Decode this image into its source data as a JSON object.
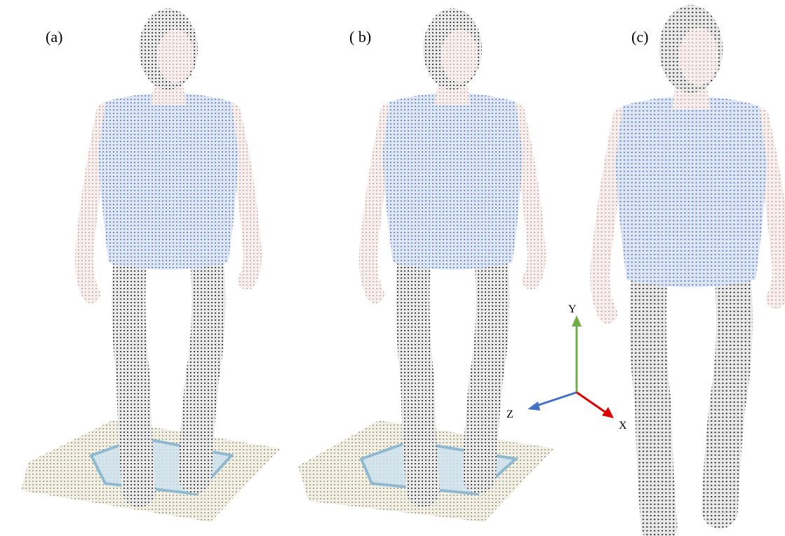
{
  "panels": [
    {
      "label": "(a)"
    },
    {
      "label": "( b)"
    },
    {
      "label": "(c)"
    }
  ],
  "axes": {
    "y": "Y",
    "z": "Z",
    "x": "X"
  }
}
